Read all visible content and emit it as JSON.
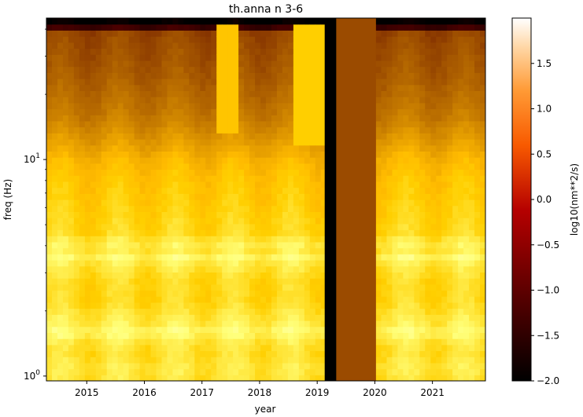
{
  "chart_data": {
    "type": "heatmap",
    "title": "th.anna n 3-6",
    "xlabel": "year",
    "ylabel": "freq (Hz)",
    "colorbar_label": "log10(nm**2/s)",
    "y_scale": "log",
    "xlim": [
      2014.3,
      2021.92
    ],
    "ylim": [
      0.95,
      45
    ],
    "x_ticks": [
      {
        "value": 2015,
        "label": "2015"
      },
      {
        "value": 2016,
        "label": "2016"
      },
      {
        "value": 2017,
        "label": "2017"
      },
      {
        "value": 2018,
        "label": "2018"
      },
      {
        "value": 2019,
        "label": "2019"
      },
      {
        "value": 2020,
        "label": "2020"
      },
      {
        "value": 2021,
        "label": "2021"
      }
    ],
    "y_major_ticks": [
      {
        "value": 1,
        "label": "10^0"
      },
      {
        "value": 10,
        "label": "10^1"
      }
    ],
    "colorbar": {
      "min": -2.0,
      "max": 2.0,
      "colormap": "gist_heat",
      "ticks": [
        {
          "value": -2.0,
          "label": "−2.0"
        },
        {
          "value": -1.5,
          "label": "−1.5"
        },
        {
          "value": -1.0,
          "label": "−1.0"
        },
        {
          "value": -0.5,
          "label": "−0.5"
        },
        {
          "value": 0.0,
          "label": "0.0"
        },
        {
          "value": 0.5,
          "label": "0.5"
        },
        {
          "value": 1.0,
          "label": "1.0"
        },
        {
          "value": 1.5,
          "label": "1.5"
        }
      ]
    },
    "frequency_profile": [
      {
        "f": 0.95,
        "v": 1.2
      },
      {
        "f": 1.1,
        "v": 1.25
      },
      {
        "f": 1.3,
        "v": 1.15
      },
      {
        "f": 1.45,
        "v": 1.25
      },
      {
        "f": 1.6,
        "v": 1.45
      },
      {
        "f": 1.75,
        "v": 1.3
      },
      {
        "f": 2.2,
        "v": 1.1
      },
      {
        "f": 2.8,
        "v": 1.1
      },
      {
        "f": 3.4,
        "v": 1.3
      },
      {
        "f": 3.6,
        "v": 1.45
      },
      {
        "f": 3.85,
        "v": 1.2
      },
      {
        "f": 4.1,
        "v": 1.35
      },
      {
        "f": 4.5,
        "v": 1.1
      },
      {
        "f": 6.0,
        "v": 1.0
      },
      {
        "f": 8.0,
        "v": 0.9
      },
      {
        "f": 10.0,
        "v": 0.75
      },
      {
        "f": 12.0,
        "v": 0.5
      },
      {
        "f": 16.0,
        "v": 0.15
      },
      {
        "f": 25.0,
        "v": -0.15
      },
      {
        "f": 38.0,
        "v": -0.35
      },
      {
        "f": 40.0,
        "v": -0.45
      },
      {
        "f": 41.5,
        "v": -2.0
      },
      {
        "f": 45.0,
        "v": -2.0
      }
    ],
    "periods": [
      {
        "start": 2014.3,
        "end": 2019.13,
        "type": "data"
      },
      {
        "start": 2019.13,
        "end": 2019.33,
        "type": "no_data",
        "value": -2.0
      },
      {
        "start": 2019.33,
        "end": 2020.02,
        "type": "constant",
        "value": -0.3
      },
      {
        "start": 2020.02,
        "end": 2021.92,
        "type": "data"
      }
    ],
    "anomalies": [
      {
        "start": 2017.22,
        "end": 2017.65,
        "f_min": 13,
        "f_max": 42,
        "value": 0.9
      },
      {
        "start": 2018.62,
        "end": 2019.12,
        "f_min": 12,
        "f_max": 42,
        "value": 1.0
      }
    ]
  }
}
